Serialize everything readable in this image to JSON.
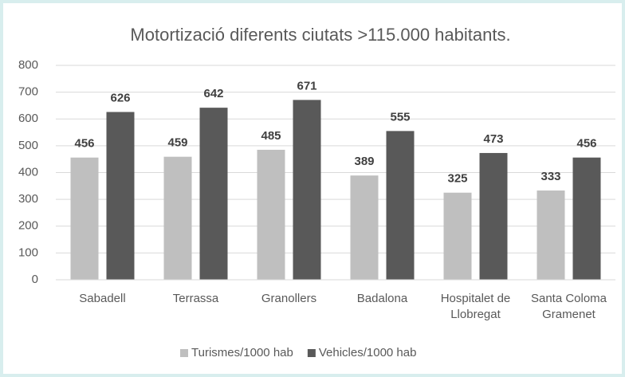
{
  "chart_data": {
    "type": "bar",
    "title": "Motortizació diferents ciutats >115.000 habitants.",
    "categories": [
      "Sabadell",
      "Terrassa",
      "Granollers",
      "Badalona",
      "Hospitalet de Llobregat",
      "Santa Coloma Gramenet"
    ],
    "series": [
      {
        "name": "Turismes/1000 hab",
        "color": "#bfbfbf",
        "values": [
          456,
          459,
          485,
          389,
          325,
          333
        ]
      },
      {
        "name": "Vehicles/1000 hab",
        "color": "#595959",
        "values": [
          626,
          642,
          671,
          555,
          473,
          456
        ]
      }
    ],
    "ylim": [
      0,
      800
    ],
    "yticks": [
      0,
      100,
      200,
      300,
      400,
      500,
      600,
      700,
      800
    ],
    "grid": true,
    "legend": "bottom"
  }
}
